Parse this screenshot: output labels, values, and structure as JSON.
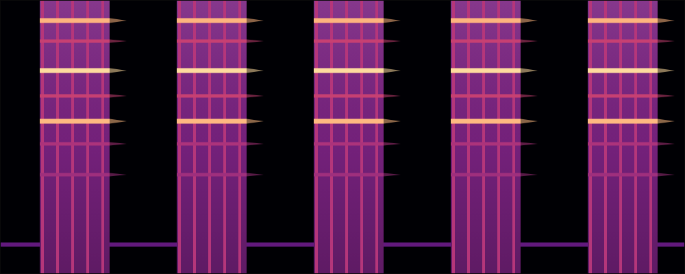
{
  "chart_data": {
    "type": "spectrogram",
    "tick_labels": false,
    "xlim": [
      0,
      100
    ],
    "ylim": [
      0,
      40
    ],
    "zlim": [
      0,
      1
    ],
    "hum": {
      "freq": 4.3,
      "level": 0.3
    },
    "bursts": [
      {
        "start": 5.8,
        "end": 16.0,
        "level": 0.36,
        "pulses": [
          6.2,
          8.4,
          10.6,
          12.8,
          15.0
        ]
      },
      {
        "start": 25.8,
        "end": 36.0,
        "level": 0.36,
        "pulses": [
          26.2,
          28.4,
          30.6,
          32.8,
          35.0
        ]
      },
      {
        "start": 45.8,
        "end": 56.0,
        "level": 0.36,
        "pulses": [
          46.2,
          48.4,
          50.6,
          52.8,
          55.0
        ]
      },
      {
        "start": 65.8,
        "end": 76.0,
        "level": 0.36,
        "pulses": [
          66.2,
          68.4,
          70.6,
          72.8,
          75.0
        ]
      },
      {
        "start": 85.8,
        "end": 96.0,
        "level": 0.36,
        "pulses": [
          86.2,
          88.4,
          90.6,
          92.8,
          95.0
        ]
      }
    ],
    "pulse_level": 0.5,
    "bands": [
      {
        "freq": 37.0,
        "level": 0.85
      },
      {
        "freq": 34.0,
        "level": 0.55
      },
      {
        "freq": 29.7,
        "level": 0.93
      },
      {
        "freq": 26.0,
        "level": 0.55
      },
      {
        "freq": 22.3,
        "level": 0.86
      },
      {
        "freq": 19.0,
        "level": 0.48
      },
      {
        "freq": 14.5,
        "level": 0.45
      }
    ]
  }
}
